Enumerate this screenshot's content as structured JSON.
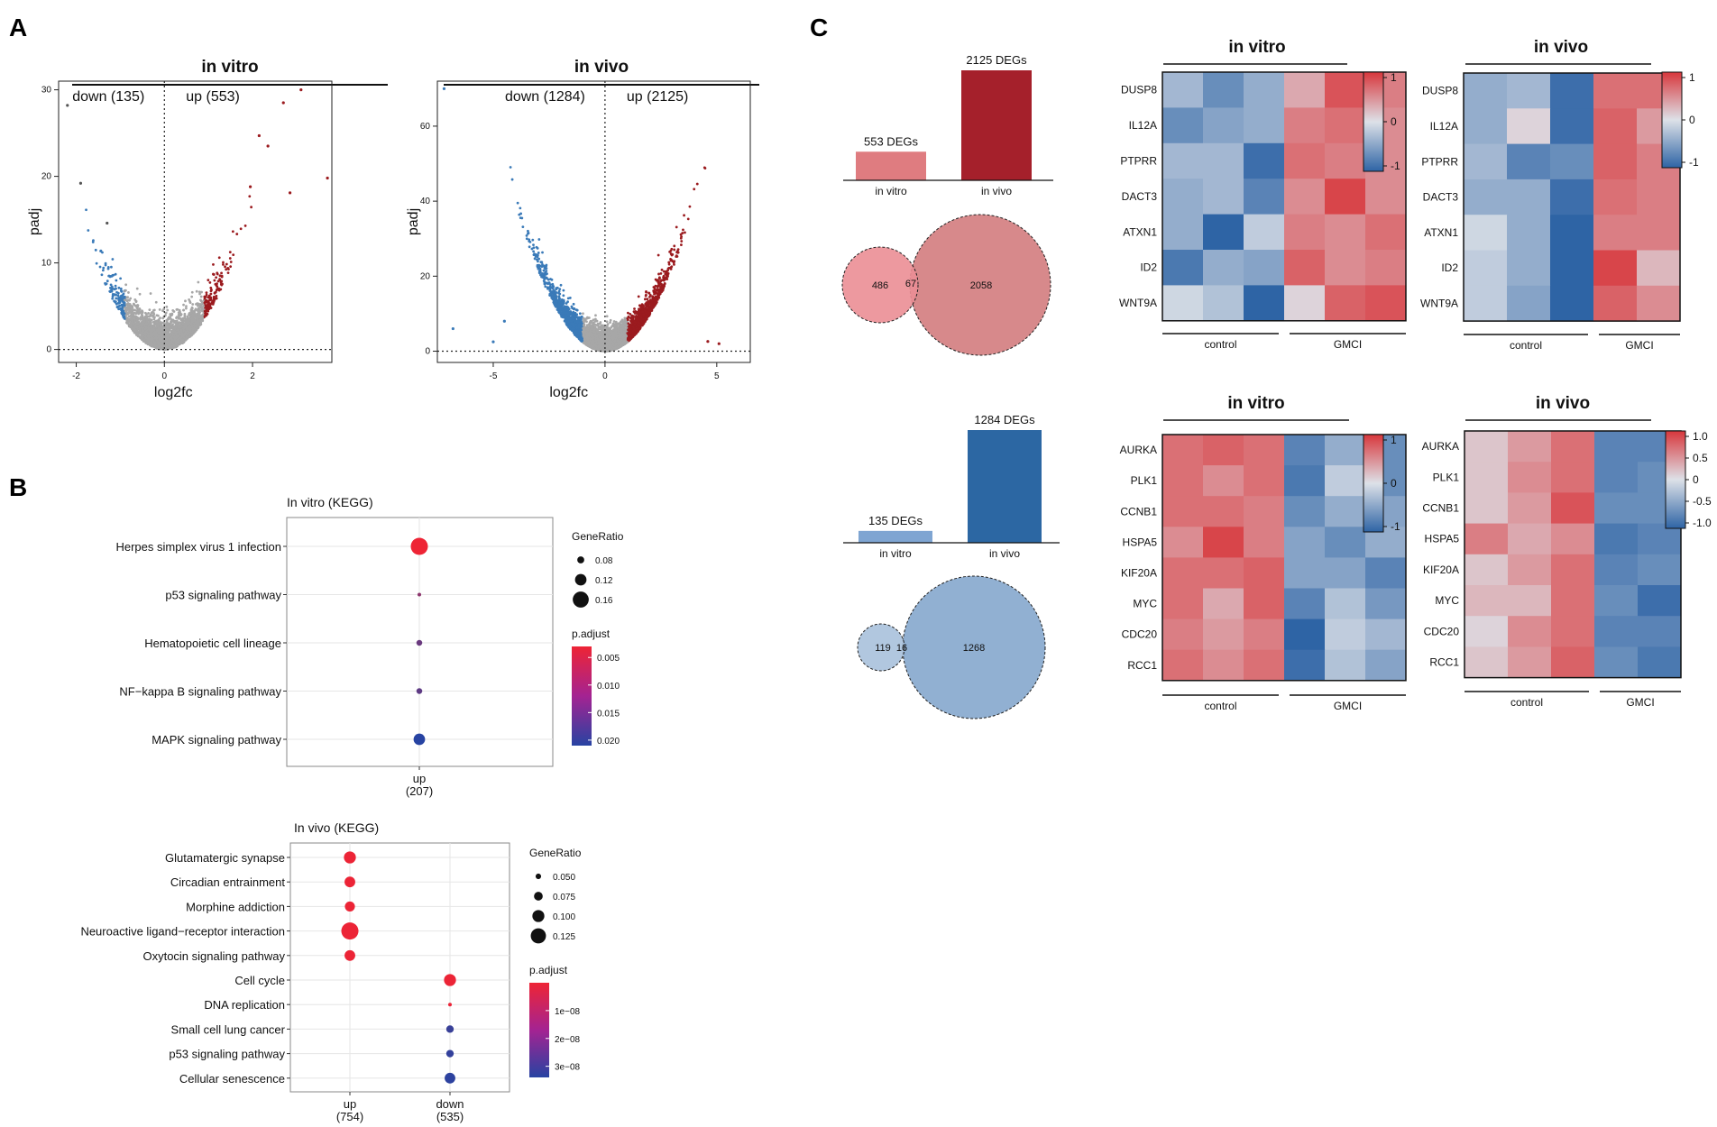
{
  "panel_letters": [
    "A",
    "B",
    "C"
  ],
  "colors": {
    "up": "#9b1b1f",
    "down": "#3a7ab8",
    "ns": "#a7a7a7",
    "bar_up_vitro": "#df7c80",
    "bar_up_vivo": "#a5202b",
    "bar_down_vitro": "#7fa5d2",
    "bar_down_vivo": "#2c67a3",
    "venn_up_a": "#eb8e95",
    "venn_up_b": "#d7898b",
    "venn_down_a": "#a8c1dc",
    "venn_down_b": "#91b0d2",
    "heat_low": "#2e64a5",
    "heat_mid": "#dde1e8",
    "heat_high": "#d8373c",
    "padj_low": "#ee2435",
    "padj_high": "#2743a2"
  },
  "chart_data": [
    {
      "id": "volcano_vitro",
      "type": "scatter",
      "title": "in vitro",
      "xlabel": "log2fc",
      "ylabel": "padj",
      "xlim": [
        -2.4,
        3.8
      ],
      "ylim": [
        -1.5,
        31
      ],
      "xticks": [
        -2,
        0,
        2
      ],
      "yticks": [
        0,
        10,
        20,
        30
      ],
      "down_label": "down (135)",
      "up_label": "up (553)",
      "threshold_x": 0,
      "threshold_y": 0,
      "notable_points": [
        [
          -2.2,
          28.2
        ],
        [
          -1.9,
          19.2
        ],
        [
          -1.3,
          14.6
        ],
        [
          3.1,
          30.0
        ],
        [
          2.7,
          28.5
        ],
        [
          2.15,
          24.7
        ],
        [
          2.35,
          23.5
        ],
        [
          3.7,
          19.8
        ],
        [
          1.95,
          18.8
        ],
        [
          2.85,
          18.1
        ]
      ]
    },
    {
      "id": "volcano_vivo",
      "type": "scatter",
      "title": "in vivo",
      "xlabel": "log2fc",
      "ylabel": "padj",
      "xlim": [
        -7.5,
        6.5
      ],
      "ylim": [
        -3,
        72
      ],
      "xticks": [
        -5,
        0,
        5
      ],
      "yticks": [
        0,
        20,
        40,
        60
      ],
      "down_label": "down (1284)",
      "up_label": "up (2125)",
      "threshold_x": 0,
      "threshold_y": 0,
      "notable_points": [
        [
          -7.2,
          70.0
        ],
        [
          -6.8,
          6.0
        ],
        [
          -5.0,
          2.5
        ],
        [
          -4.5,
          8.0
        ],
        [
          4.6,
          2.6
        ],
        [
          5.1,
          2.0
        ]
      ]
    },
    {
      "id": "kegg_vitro",
      "type": "scatter",
      "title": "In vitro (KEGG)",
      "categories_x": [
        "up\n(207)"
      ],
      "categories_y": [
        "Herpes simplex virus 1 infection",
        "p53 signaling pathway",
        "Hematopoietic cell lineage",
        "NF−kappa B signaling pathway",
        "MAPK signaling pathway"
      ],
      "points": [
        {
          "x": "up\n(207)",
          "y": "Herpes simplex virus 1 infection",
          "gene_ratio": 0.17,
          "p_adjust": 0.001
        },
        {
          "x": "up\n(207)",
          "y": "p53 signaling pathway",
          "gene_ratio": 0.05,
          "p_adjust": 0.012
        },
        {
          "x": "up\n(207)",
          "y": "Hematopoietic cell lineage",
          "gene_ratio": 0.07,
          "p_adjust": 0.015
        },
        {
          "x": "up\n(207)",
          "y": "NF−kappa B signaling pathway",
          "gene_ratio": 0.07,
          "p_adjust": 0.016
        },
        {
          "x": "up\n(207)",
          "y": "MAPK signaling pathway",
          "gene_ratio": 0.12,
          "p_adjust": 0.021
        }
      ],
      "size_legend_title": "GeneRatio",
      "size_legend": [
        0.08,
        0.12,
        0.16
      ],
      "color_legend_title": "p.adjust",
      "color_range": [
        0.003,
        0.021
      ],
      "color_ticks": [
        0.005,
        0.01,
        0.015,
        0.02
      ],
      "color_tick_labels": [
        "0.005",
        "0.010",
        "0.015",
        "0.020"
      ]
    },
    {
      "id": "kegg_vivo",
      "type": "scatter",
      "title": "In vivo (KEGG)",
      "categories_x": [
        "up\n(754)",
        "down\n(535)"
      ],
      "categories_y": [
        "Glutamatergic synapse",
        "Circadian entrainment",
        "Morphine addiction",
        "Neuroactive ligand−receptor interaction",
        "Oxytocin signaling pathway",
        "Cell cycle",
        "DNA replication",
        "Small cell lung cancer",
        "p53 signaling pathway",
        "Cellular senescence"
      ],
      "points": [
        {
          "x": "up\n(754)",
          "y": "Glutamatergic synapse",
          "gene_ratio": 0.1,
          "p_adjust": 3e-10
        },
        {
          "x": "up\n(754)",
          "y": "Circadian entrainment",
          "gene_ratio": 0.09,
          "p_adjust": 3e-10
        },
        {
          "x": "up\n(754)",
          "y": "Morphine addiction",
          "gene_ratio": 0.085,
          "p_adjust": 3e-10
        },
        {
          "x": "up\n(754)",
          "y": "Neuroactive ligand−receptor interaction",
          "gene_ratio": 0.14,
          "p_adjust": 3e-10
        },
        {
          "x": "up\n(754)",
          "y": "Oxytocin signaling pathway",
          "gene_ratio": 0.09,
          "p_adjust": 3e-10
        },
        {
          "x": "down\n(535)",
          "y": "Cell cycle",
          "gene_ratio": 0.1,
          "p_adjust": 3e-10
        },
        {
          "x": "down\n(535)",
          "y": "DNA replication",
          "gene_ratio": 0.035,
          "p_adjust": 5e-10
        },
        {
          "x": "down\n(535)",
          "y": "Small cell lung cancer",
          "gene_ratio": 0.065,
          "p_adjust": 3.1e-08
        },
        {
          "x": "down\n(535)",
          "y": "p53 signaling pathway",
          "gene_ratio": 0.065,
          "p_adjust": 3.2e-08
        },
        {
          "x": "down\n(535)",
          "y": "Cellular senescence",
          "gene_ratio": 0.09,
          "p_adjust": 3.3e-08
        }
      ],
      "size_legend_title": "GeneRatio",
      "size_legend": [
        0.05,
        0.075,
        0.1,
        0.125
      ],
      "size_legend_labels": [
        "0.050",
        "0.075",
        "0.100",
        "0.125"
      ],
      "color_legend_title": "p.adjust",
      "color_range": [
        0.0,
        3.4e-08
      ],
      "color_ticks": [
        1e-08,
        2e-08,
        3e-08
      ],
      "color_tick_labels": [
        "1e−08",
        "2e−08",
        "3e−08"
      ]
    },
    {
      "id": "bars_up",
      "type": "bar",
      "categories": [
        "in vitro",
        "in vivo"
      ],
      "values": [
        553,
        2125
      ],
      "value_labels": [
        "553 DEGs",
        "2125 DEGs"
      ]
    },
    {
      "id": "venn_up",
      "type": "venn",
      "set_sizes": [
        553,
        2125
      ],
      "only_a": 486,
      "overlap": 67,
      "only_b": 2058
    },
    {
      "id": "bars_down",
      "type": "bar",
      "categories": [
        "in vitro",
        "in vivo"
      ],
      "values": [
        135,
        1284
      ],
      "value_labels": [
        "135 DEGs",
        "1284 DEGs"
      ]
    },
    {
      "id": "venn_down",
      "type": "venn",
      "set_sizes": [
        135,
        1284
      ],
      "only_a": 119,
      "overlap": 16,
      "only_b": 1268
    },
    {
      "id": "heat_up_vitro",
      "type": "heatmap",
      "title": "in vitro",
      "rows": [
        "DUSP8",
        "IL12A",
        "PTPRR",
        "DACT3",
        "ATXN1",
        "ID2",
        "WNT9A"
      ],
      "groups": [
        "control",
        "GMCI"
      ],
      "legend_ticks": [
        1,
        0,
        -1
      ],
      "legend_labels": [
        "1",
        "0",
        "-1"
      ],
      "values": [
        [
          -0.4,
          -0.8,
          -0.5,
          0.4,
          1.0,
          0.7
        ],
        [
          -0.8,
          -0.6,
          -0.5,
          0.7,
          0.8,
          0.6
        ],
        [
          -0.4,
          -0.4,
          -1.1,
          0.8,
          0.7,
          0.6
        ],
        [
          -0.5,
          -0.4,
          -0.9,
          0.6,
          1.1,
          0.6
        ],
        [
          -0.5,
          -1.2,
          -0.2,
          0.7,
          0.6,
          0.8
        ],
        [
          -1.0,
          -0.5,
          -0.6,
          0.9,
          0.6,
          0.7
        ],
        [
          -0.1,
          -0.3,
          -1.3,
          0.1,
          0.9,
          1.0
        ]
      ]
    },
    {
      "id": "heat_up_vivo",
      "type": "heatmap",
      "title": "in vivo",
      "rows": [
        "DUSP8",
        "IL12A",
        "PTPRR",
        "DACT3",
        "ATXN1",
        "ID2",
        "WNT9A"
      ],
      "groups": [
        "control",
        "GMCI"
      ],
      "legend_ticks": [
        1,
        0,
        -1
      ],
      "legend_labels": [
        "1",
        "0",
        "-1"
      ],
      "values": [
        [
          -0.5,
          -0.4,
          -1.1,
          0.8,
          0.8
        ],
        [
          -0.5,
          0.1,
          -1.1,
          0.9,
          0.5
        ],
        [
          -0.4,
          -0.9,
          -0.8,
          0.9,
          0.7
        ],
        [
          -0.5,
          -0.5,
          -1.1,
          0.8,
          0.7
        ],
        [
          -0.1,
          -0.5,
          -1.4,
          0.7,
          0.7
        ],
        [
          -0.2,
          -0.5,
          -1.2,
          1.1,
          0.3
        ],
        [
          -0.2,
          -0.6,
          -1.3,
          0.9,
          0.6
        ]
      ]
    },
    {
      "id": "heat_down_vitro",
      "type": "heatmap",
      "title": "in vitro",
      "rows": [
        "AURKA",
        "PLK1",
        "CCNB1",
        "HSPA5",
        "KIF20A",
        "MYC",
        "CDC20",
        "RCC1"
      ],
      "groups": [
        "control",
        "GMCI"
      ],
      "legend_ticks": [
        1,
        0,
        -1
      ],
      "legend_labels": [
        "1",
        "0",
        "-1"
      ],
      "values": [
        [
          0.8,
          0.9,
          0.8,
          -0.9,
          -0.5,
          -0.8
        ],
        [
          0.8,
          0.6,
          0.8,
          -1.0,
          -0.2,
          -0.8
        ],
        [
          0.8,
          0.8,
          0.7,
          -0.8,
          -0.5,
          -0.6
        ],
        [
          0.6,
          1.1,
          0.7,
          -0.6,
          -0.8,
          -0.5
        ],
        [
          0.8,
          0.8,
          0.9,
          -0.6,
          -0.6,
          -0.9
        ],
        [
          0.8,
          0.4,
          0.9,
          -0.9,
          -0.3,
          -0.7
        ],
        [
          0.7,
          0.5,
          0.7,
          -1.2,
          -0.2,
          -0.4
        ],
        [
          0.8,
          0.6,
          0.8,
          -1.1,
          -0.3,
          -0.6
        ]
      ]
    },
    {
      "id": "heat_down_vivo",
      "type": "heatmap",
      "title": "in vivo",
      "rows": [
        "AURKA",
        "PLK1",
        "CCNB1",
        "HSPA5",
        "KIF20A",
        "MYC",
        "CDC20",
        "RCC1"
      ],
      "groups": [
        "control",
        "GMCI"
      ],
      "legend_ticks": [
        1.0,
        0.5,
        0,
        -0.5,
        -1.0
      ],
      "legend_labels": [
        "1.0",
        "0.5",
        "0",
        "-0.5",
        "-1.0"
      ],
      "values": [
        [
          0.2,
          0.5,
          0.8,
          -0.9,
          -0.9
        ],
        [
          0.2,
          0.6,
          0.8,
          -0.9,
          -0.8
        ],
        [
          0.2,
          0.5,
          1.0,
          -0.8,
          -0.8
        ],
        [
          0.7,
          0.4,
          0.6,
          -1.0,
          -0.9
        ],
        [
          0.2,
          0.5,
          0.8,
          -0.9,
          -0.8
        ],
        [
          0.3,
          0.3,
          0.8,
          -0.8,
          -1.1
        ],
        [
          0.1,
          0.6,
          0.8,
          -0.9,
          -0.9
        ],
        [
          0.2,
          0.5,
          0.9,
          -0.8,
          -1.0
        ]
      ]
    }
  ]
}
